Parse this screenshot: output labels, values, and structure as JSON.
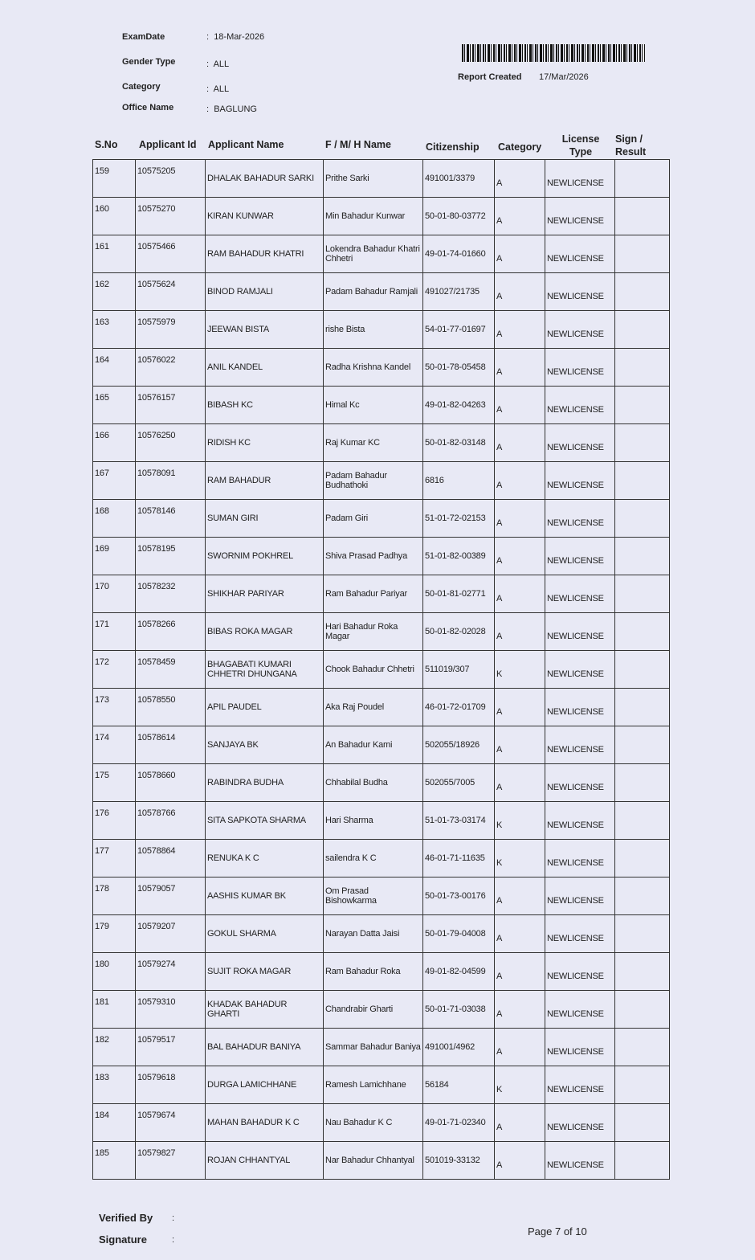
{
  "meta": [
    {
      "label": "ExamDate",
      "value": "18-Mar-2026"
    },
    {
      "label": "Gender Type",
      "value": "ALL"
    },
    {
      "label": "Category",
      "value": "ALL"
    },
    {
      "label": "Office Name",
      "value": "BAGLUNG"
    }
  ],
  "separator": ":",
  "report": {
    "label": "Report Created",
    "value": "17/Mar/2026"
  },
  "columns": [
    "S.No",
    "Applicant Id",
    "Applicant Name",
    "F / M/ H Name",
    "Citizenship",
    "Category",
    "License Type",
    "Sign / Result"
  ],
  "rows": [
    [
      "159",
      "10575205",
      "DHALAK BAHADUR SARKI",
      "Prithe  Sarki",
      "491001/3379",
      "A",
      "NEWLICENSE",
      ""
    ],
    [
      "160",
      "10575270",
      "KIRAN  KUNWAR",
      "Min Bahadur  Kunwar",
      "50-01-80-03772",
      "A",
      "NEWLICENSE",
      ""
    ],
    [
      "161",
      "10575466",
      "RAM BAHADUR KHATRI",
      "Lokendra Bahadur Khatri Chhetri",
      "49-01-74-01660",
      "A",
      "NEWLICENSE",
      ""
    ],
    [
      "162",
      "10575624",
      "BINOD  RAMJALI",
      "Padam Bahadur Ramjali",
      "491027/21735",
      "A",
      "NEWLICENSE",
      ""
    ],
    [
      "163",
      "10575979",
      "JEEWAN  BISTA",
      "rishe  Bista",
      "54-01-77-01697",
      "A",
      "NEWLICENSE",
      ""
    ],
    [
      "164",
      "10576022",
      "ANIL  KANDEL",
      "Radha Krishna Kandel",
      "50-01-78-05458",
      "A",
      "NEWLICENSE",
      ""
    ],
    [
      "165",
      "10576157",
      "BIBASH  KC",
      "Himal  Kc",
      "49-01-82-04263",
      "A",
      "NEWLICENSE",
      ""
    ],
    [
      "166",
      "10576250",
      "RIDISH  KC",
      "Raj Kumar KC",
      "50-01-82-03148",
      "A",
      "NEWLICENSE",
      ""
    ],
    [
      "167",
      "10578091",
      "RAM BAHADUR",
      "Padam Bahadur Budhathoki",
      "6816",
      "A",
      "NEWLICENSE",
      ""
    ],
    [
      "168",
      "10578146",
      "SUMAN  GIRI",
      "Padam  Giri",
      "51-01-72-02153",
      "A",
      "NEWLICENSE",
      ""
    ],
    [
      "169",
      "10578195",
      "SWORNIM  POKHREL",
      "Shiva Prasad Padhya",
      "51-01-82-00389",
      "A",
      "NEWLICENSE",
      ""
    ],
    [
      "170",
      "10578232",
      "SHIKHAR  PARIYAR",
      "Ram Bahadur Pariyar",
      "50-01-81-02771",
      "A",
      "NEWLICENSE",
      ""
    ],
    [
      "171",
      "10578266",
      "BIBAS ROKA MAGAR",
      "Hari Bahadur  Roka Magar",
      "50-01-82-02028",
      "A",
      "NEWLICENSE",
      ""
    ],
    [
      "172",
      "10578459",
      "BHAGABATI KUMARI CHHETRI DHUNGANA",
      "Chook Bahadur Chhetri",
      "511019/307",
      "K",
      "NEWLICENSE",
      ""
    ],
    [
      "173",
      "10578550",
      "APIL  PAUDEL",
      "Aka Raj Poudel",
      "46-01-72-01709",
      "A",
      "NEWLICENSE",
      ""
    ],
    [
      "174",
      "10578614",
      "SANJAYA  BK",
      "An Bahadur Kami",
      "502055/18926",
      "A",
      "NEWLICENSE",
      ""
    ],
    [
      "175",
      "10578660",
      "RABINDRA  BUDHA",
      "Chhabilal  Budha",
      "502055/7005",
      "A",
      "NEWLICENSE",
      ""
    ],
    [
      "176",
      "10578766",
      "SITA SAPKOTA SHARMA",
      "Hari  Sharma",
      "51-01-73-03174",
      "K",
      "NEWLICENSE",
      ""
    ],
    [
      "177",
      "10578864",
      "RENUKA  K C",
      "sailendra  K C",
      "46-01-71-11635",
      "K",
      "NEWLICENSE",
      ""
    ],
    [
      "178",
      "10579057",
      "AASHIS KUMAR BK",
      "Om Prasad Bishowkarma",
      "50-01-73-00176",
      "A",
      "NEWLICENSE",
      ""
    ],
    [
      "179",
      "10579207",
      "GOKUL  SHARMA",
      "Narayan Datta Jaisi",
      "50-01-79-04008",
      "A",
      "NEWLICENSE",
      ""
    ],
    [
      "180",
      "10579274",
      "SUJIT  ROKA MAGAR",
      "Ram Bahadur Roka",
      "49-01-82-04599",
      "A",
      "NEWLICENSE",
      ""
    ],
    [
      "181",
      "10579310",
      "KHADAK BAHADUR GHARTI",
      "Chandrabir  Gharti",
      "50-01-71-03038",
      "A",
      "NEWLICENSE",
      ""
    ],
    [
      "182",
      "10579517",
      "BAL BAHADUR BANIYA",
      "Sammar Bahadur Baniya",
      "491001/4962",
      "A",
      "NEWLICENSE",
      ""
    ],
    [
      "183",
      "10579618",
      "DURGA  LAMICHHANE",
      "Ramesh  Lamichhane",
      "56184",
      "K",
      "NEWLICENSE",
      ""
    ],
    [
      "184",
      "10579674",
      "MAHAN BAHADUR K C",
      "Nau Bahadur K C",
      "49-01-71-02340",
      "A",
      "NEWLICENSE",
      ""
    ],
    [
      "185",
      "10579827",
      "ROJAN  CHHANTYAL",
      "Nar Bahadur  Chhantyal",
      "501019-33132",
      "A",
      "NEWLICENSE",
      ""
    ]
  ],
  "footer": {
    "verified_by": "Verified By",
    "signature": "Signature",
    "separator": ":",
    "page": "Page 7 of 10"
  }
}
